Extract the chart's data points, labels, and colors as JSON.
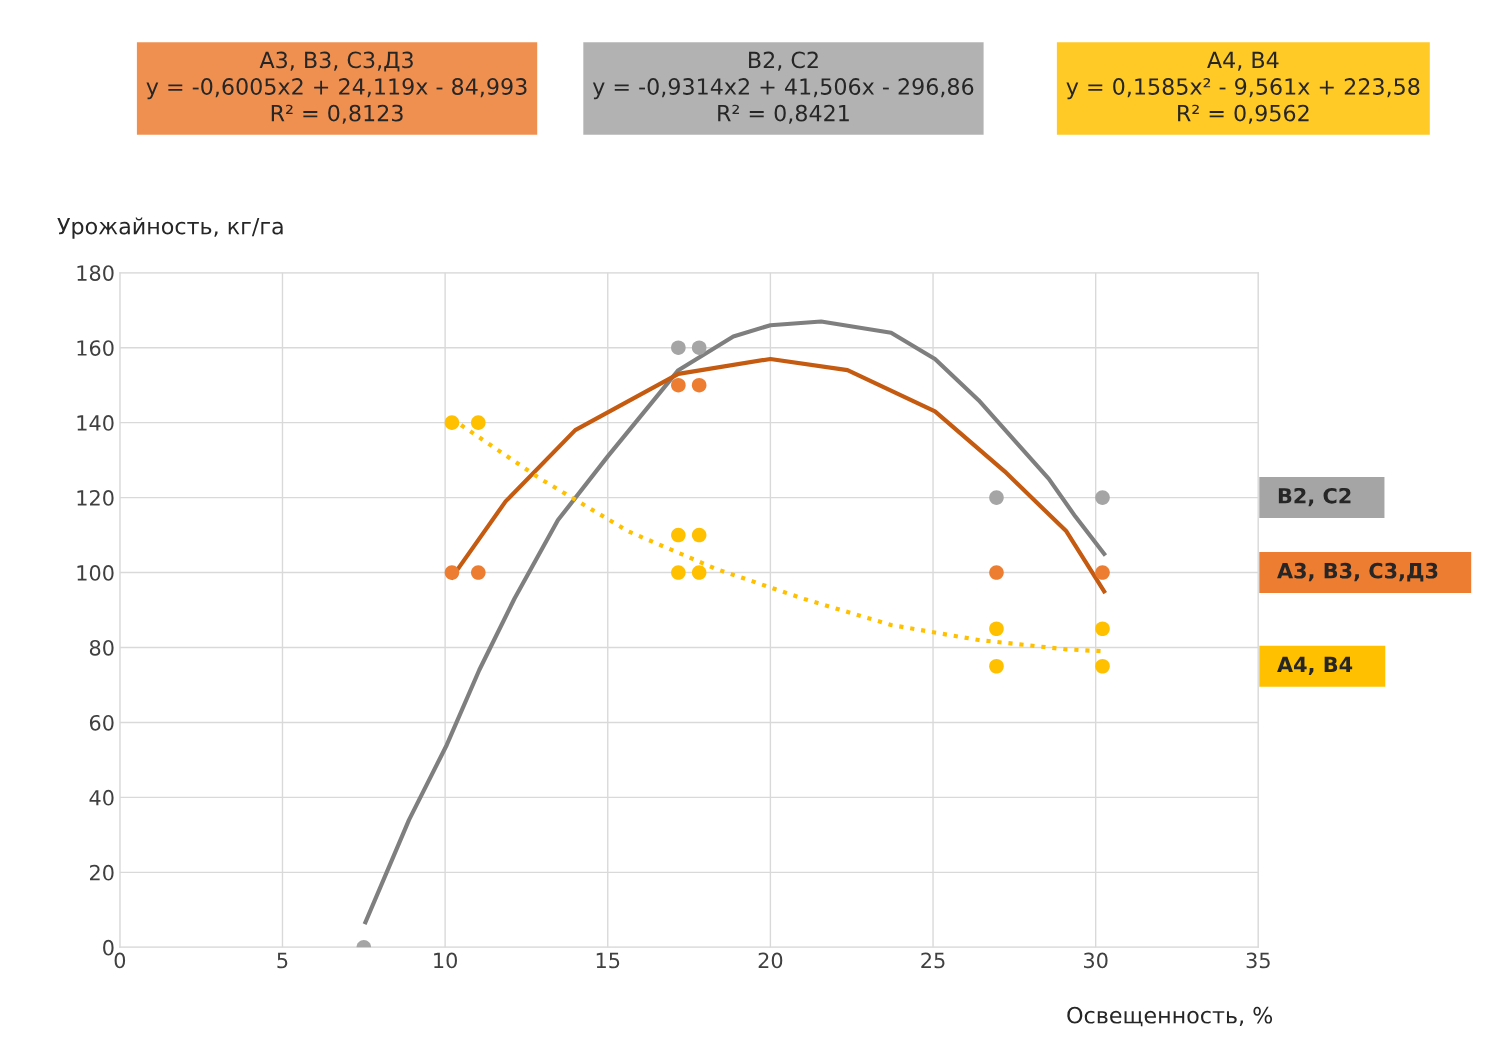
{
  "chart_data": {
    "type": "scatter",
    "xlabel": "Освещенность, %",
    "ylabel": "Урожайность, кг/га",
    "xlim": [
      0,
      35
    ],
    "xticks": [
      0,
      5,
      10,
      15,
      20,
      25,
      30,
      35
    ],
    "ylim": [
      0,
      180
    ],
    "yticks": [
      0,
      20,
      40,
      60,
      80,
      100,
      120,
      140,
      160,
      180
    ],
    "grid": true,
    "legend": false,
    "marker": "circle",
    "annotations": [
      "А3, В3, С3,Д3\ny = -0,6005x2 + 24,119x - 84,993\nR² = 0,8123",
      "В2, С2\ny = -0,9314x2 + 41,506x - 296,86\nR² = 0,8421",
      "А4, В4\ny = 0,1585x² - 9,561x + 223,58\nR² = 0,9562"
    ],
    "series": [
      {
        "name": "В2, С2",
        "color": "#a5a5a5",
        "x": [
          7.5,
          17.17,
          17.81,
          26.95,
          30.21
        ],
        "values": [
          0,
          160,
          160,
          120,
          120
        ]
      },
      {
        "name": "А3, В3, С3,Д3",
        "color": "#ed7d31",
        "x": [
          10.21,
          11.02,
          17.17,
          17.81,
          26.95,
          30.21
        ],
        "values": [
          100,
          100,
          150,
          150,
          100,
          100
        ]
      },
      {
        "name": "А4, В4",
        "color": "#ffc000",
        "x": [
          10.21,
          11.02,
          17.17,
          17.81,
          17.17,
          17.81,
          26.95,
          26.95,
          30.21,
          30.21
        ],
        "values": [
          140,
          140,
          110,
          110,
          100,
          100,
          85,
          75,
          85,
          75
        ]
      },
      {
        "type": "line",
        "marker": "none",
        "color": "#7f7f7f",
        "line_style": "solid",
        "x": [
          7.55,
          8.89,
          10.05,
          11.05,
          12.13,
          13.47,
          15.0,
          17.17,
          18.86,
          20.0,
          21.56,
          23.71,
          25.06,
          26.4,
          28.56,
          29.37,
          30.26
        ],
        "values": [
          6.7,
          34,
          54,
          74,
          93,
          114,
          131,
          154,
          163,
          166,
          167,
          164,
          157,
          146,
          125,
          115,
          105
        ]
      },
      {
        "type": "line",
        "marker": "none",
        "color": "#c55a11",
        "line_style": "solid",
        "x": [
          10.21,
          11.86,
          14.0,
          17.17,
          20.0,
          22.37,
          25.06,
          27.2,
          29.1,
          30.26
        ],
        "values": [
          98.7,
          119,
          138,
          153,
          157,
          154,
          143,
          127,
          111,
          95
        ]
      },
      {
        "type": "line",
        "marker": "none",
        "color": "#ffc000",
        "line_style": "dotted",
        "x": [
          10.21,
          12.93,
          15.63,
          18.32,
          21.02,
          23.71,
          26.4,
          29.1,
          30.21
        ],
        "values": [
          141,
          125,
          111,
          101,
          93,
          86,
          82,
          79.5,
          79
        ]
      }
    ]
  }
}
